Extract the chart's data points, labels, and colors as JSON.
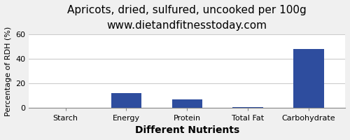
{
  "title": "Apricots, dried, sulfured, uncooked per 100g",
  "subtitle": "www.dietandfitnesstoday.com",
  "xlabel": "Different Nutrients",
  "ylabel": "Percentage of RDH (%)",
  "categories": [
    "Starch",
    "Energy",
    "Protein",
    "Total Fat",
    "Carbohydrate"
  ],
  "values": [
    0,
    12,
    7,
    1,
    48
  ],
  "bar_color": "#2e4d9e",
  "ylim": [
    0,
    60
  ],
  "yticks": [
    0,
    20,
    40,
    60
  ],
  "background_color": "#f0f0f0",
  "plot_background": "#ffffff",
  "title_fontsize": 11,
  "subtitle_fontsize": 9,
  "xlabel_fontsize": 10,
  "ylabel_fontsize": 8,
  "tick_fontsize": 8,
  "grid_color": "#cccccc"
}
